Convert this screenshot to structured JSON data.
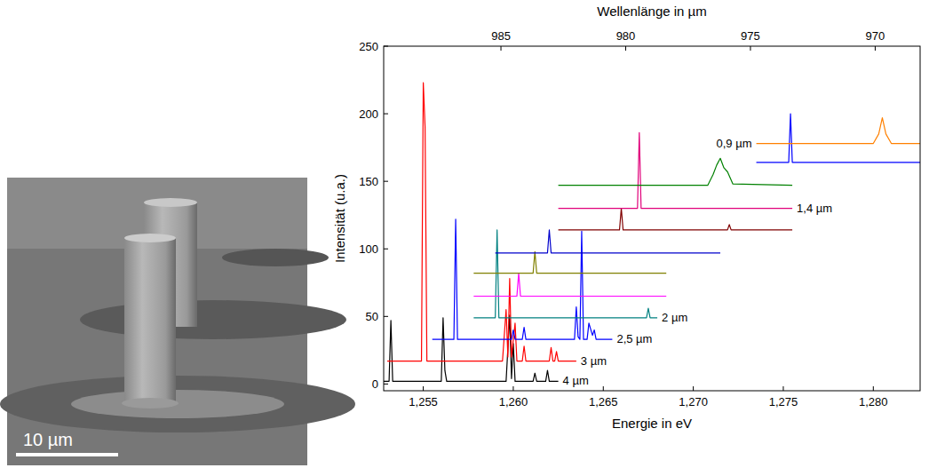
{
  "image": {
    "scale_bar": "10 µm"
  },
  "chart_data": {
    "type": "line",
    "xlabel": "Energie in eV",
    "ylabel": "Intensität (u.a.)",
    "x2label": "Wellenlänge in µm",
    "xlim": [
      1.2528,
      1.2826
    ],
    "xticks": [
      {
        "value": 1.255,
        "label": "1,255"
      },
      {
        "value": 1.26,
        "label": "1,260"
      },
      {
        "value": 1.265,
        "label": "1,265"
      },
      {
        "value": 1.27,
        "label": "1,270"
      },
      {
        "value": 1.275,
        "label": "1,275"
      },
      {
        "value": 1.28,
        "label": "1,280"
      }
    ],
    "x2lim": [
      989.7,
      968.2
    ],
    "x2ticks": [
      985,
      980,
      975,
      970
    ],
    "ylim": [
      -5,
      250
    ],
    "yticks": [
      0,
      50,
      100,
      150,
      200,
      250
    ],
    "grid": false,
    "series": [
      {
        "name": "4 µm",
        "color": "#000000",
        "x": [
          1.2528,
          1.2531,
          1.2532,
          1.2533,
          1.256,
          1.2561,
          1.2562,
          1.2563,
          1.2596,
          1.2598,
          1.2599,
          1.26,
          1.2601,
          1.2611,
          1.2612,
          1.2613,
          1.2618,
          1.2619,
          1.262,
          1.2625
        ],
        "values": [
          2,
          2,
          47,
          2,
          2,
          49,
          10,
          2,
          2,
          51,
          4,
          30,
          2,
          2,
          8,
          2,
          2,
          10,
          2,
          2
        ]
      },
      {
        "name": "3 µm",
        "color": "#ff0000",
        "x": [
          1.253,
          1.2549,
          1.255,
          1.2551,
          1.2552,
          1.2594,
          1.2596,
          1.2597,
          1.2598,
          1.2599,
          1.2601,
          1.2602,
          1.2605,
          1.2606,
          1.2607,
          1.262,
          1.2621,
          1.2622,
          1.2623,
          1.2624,
          1.2625,
          1.2635
        ],
        "values": [
          17,
          17,
          223,
          190,
          17,
          17,
          55,
          20,
          78,
          20,
          45,
          17,
          17,
          28,
          17,
          17,
          27,
          17,
          17,
          24,
          17,
          17
        ]
      },
      {
        "name": "2,5 µm",
        "color": "#0000ff",
        "x": [
          1.2555,
          1.2567,
          1.2568,
          1.2569,
          1.2599,
          1.26,
          1.2601,
          1.2605,
          1.2606,
          1.2607,
          1.2634,
          1.2635,
          1.2636,
          1.2637,
          1.2638,
          1.2639,
          1.2641,
          1.2642,
          1.2644,
          1.2645,
          1.2646,
          1.2655
        ],
        "values": [
          33,
          33,
          122,
          33,
          33,
          40,
          33,
          33,
          42,
          33,
          33,
          57,
          35,
          33,
          113,
          33,
          33,
          45,
          36,
          40,
          33,
          33
        ]
      },
      {
        "name": "2 µm",
        "color": "#008080",
        "x": [
          1.2578,
          1.259,
          1.2591,
          1.2592,
          1.2674,
          1.2675,
          1.2676,
          1.268
        ],
        "values": [
          49,
          49,
          114,
          49,
          49,
          56,
          49,
          49
        ]
      },
      {
        "color": "#ff00ff",
        "x": [
          1.2578,
          1.2602,
          1.2603,
          1.2604,
          1.2685
        ],
        "values": [
          65,
          65,
          82,
          65,
          65
        ]
      },
      {
        "color": "#808000",
        "x": [
          1.2578,
          1.2611,
          1.2612,
          1.2613,
          1.2685
        ],
        "values": [
          82,
          82,
          98,
          82,
          82
        ]
      },
      {
        "color": "#0000cc",
        "x": [
          1.259,
          1.2619,
          1.262,
          1.2621,
          1.2715
        ],
        "values": [
          97,
          97,
          114,
          97,
          97
        ]
      },
      {
        "color": "#800000",
        "x": [
          1.2625,
          1.2659,
          1.266,
          1.2661,
          1.2719,
          1.272,
          1.2721,
          1.2755
        ],
        "values": [
          114,
          114,
          130,
          114,
          114,
          118,
          114,
          114
        ]
      },
      {
        "name": "1,4 µm",
        "color": "#e0007a",
        "x": [
          1.2625,
          1.2669,
          1.267,
          1.2671,
          1.2755
        ],
        "values": [
          130,
          130,
          186,
          130,
          130
        ]
      },
      {
        "color": "#008000",
        "x": [
          1.2625,
          1.2708,
          1.2711,
          1.2713,
          1.2715,
          1.2717,
          1.2719,
          1.2722,
          1.2755
        ],
        "values": [
          147,
          147,
          155,
          162,
          167,
          160,
          157,
          148,
          147
        ]
      },
      {
        "color": "#0000ff",
        "x": [
          1.2735,
          1.2753,
          1.2754,
          1.2755,
          1.2826
        ],
        "values": [
          164,
          164,
          200,
          164,
          164
        ]
      },
      {
        "name": "0,9 µm",
        "color": "#ff8000",
        "x": [
          1.2735,
          1.28,
          1.2803,
          1.2805,
          1.2807,
          1.281,
          1.2826
        ],
        "values": [
          178,
          178,
          185,
          197,
          185,
          178,
          178
        ]
      }
    ]
  }
}
